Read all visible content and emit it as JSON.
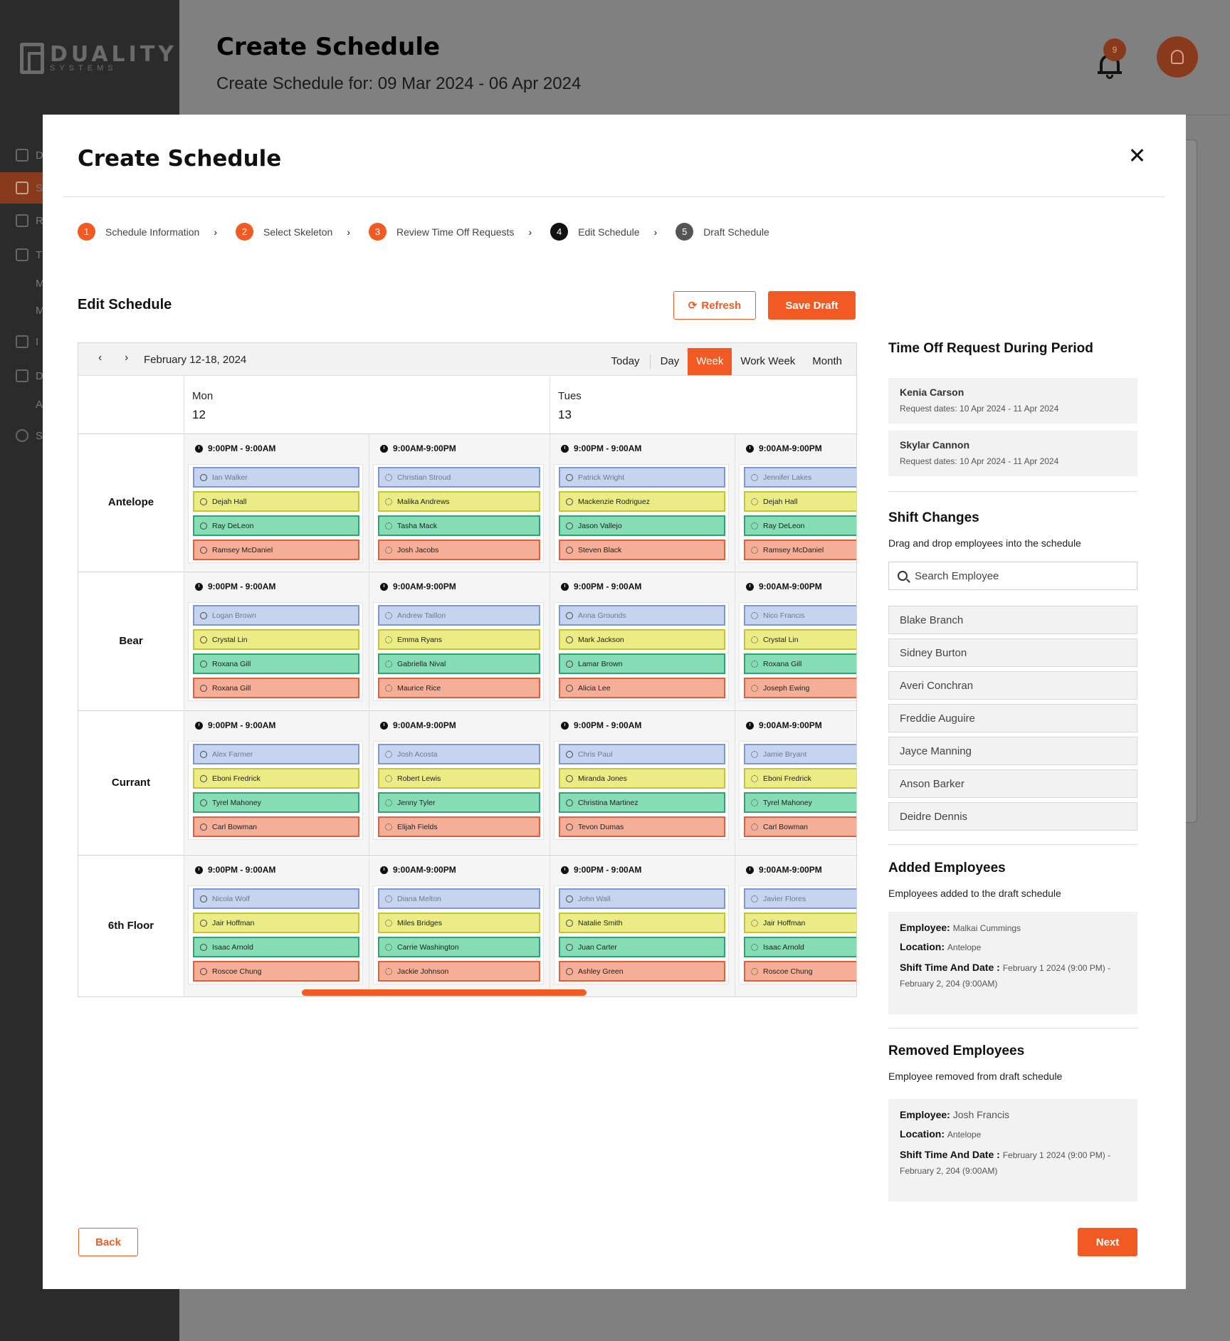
{
  "app": {
    "logo_text": "DUALITY",
    "logo_sub": "SYSTEMS",
    "page_title": "Create Schedule",
    "page_subtitle": "Create Schedule for: 09 Mar 2024 - 06 Apr 2024",
    "notification_count": "9",
    "sidebar": [
      "D",
      "S",
      "R",
      "T",
      "M",
      "M",
      "I",
      "D",
      "A",
      "Se"
    ]
  },
  "modal": {
    "title": "Create Schedule",
    "steps": [
      {
        "num": "1",
        "label": "Schedule Information"
      },
      {
        "num": "2",
        "label": "Select Skeleton"
      },
      {
        "num": "3",
        "label": "Review Time Off Requests"
      },
      {
        "num": "4",
        "label": "Edit Schedule"
      },
      {
        "num": "5",
        "label": "Draft Schedule"
      }
    ],
    "section_title": "Edit Schedule",
    "refresh_label": "Refresh",
    "save_draft_label": "Save Draft",
    "back_label": "Back",
    "next_label": "Next"
  },
  "calendar": {
    "prev": "‹",
    "next": "›",
    "range": "February 12-18, 2024",
    "views": [
      "Today",
      "Day",
      "Week",
      "Work Week",
      "Month"
    ],
    "active_view": "Week",
    "days": [
      {
        "name": "Mon",
        "date": "12"
      },
      {
        "name": "Tues",
        "date": "13"
      }
    ],
    "shift_colors": {
      "blue": "#c6d4ef",
      "yellow": "#ecec86",
      "green": "#86dcb4",
      "red": "#f5ae98",
      "accent": "#f15a22"
    },
    "locations": [
      {
        "name": "Antelope",
        "shifts": [
          {
            "time": "9:00PM - 9:00AM",
            "icon": "moon",
            "employees": [
              "Ian Walker",
              "Dejah Hall",
              "Ray DeLeon",
              "Ramsey McDaniel"
            ]
          },
          {
            "time": "9:00AM-9:00PM",
            "icon": "sun",
            "employees": [
              "Christian Stroud",
              "Malika Andrews",
              "Tasha Mack",
              "Josh Jacobs"
            ]
          },
          {
            "time": "9:00PM - 9:00AM",
            "icon": "moon",
            "employees": [
              "Patrick Wright",
              "Mackenzie Rodriguez",
              "Jason Vallejo",
              "Steven Black"
            ]
          },
          {
            "time": "9:00AM-9:00PM",
            "icon": "sun",
            "employees": [
              "Jennifer Lakes",
              "Dejah Hall",
              "Ray DeLeon",
              "Ramsey McDaniel"
            ]
          }
        ]
      },
      {
        "name": "Bear",
        "shifts": [
          {
            "time": "9:00PM - 9:00AM",
            "icon": "moon",
            "employees": [
              "Logan Brown",
              "Crystal Lin",
              "Roxana Gill",
              "Roxana Gill"
            ]
          },
          {
            "time": "9:00AM-9:00PM",
            "icon": "sun",
            "employees": [
              "Andrew Taillon",
              "Emma Ryans",
              "Gabriella Nival",
              "Maurice Rice"
            ]
          },
          {
            "time": "9:00PM - 9:00AM",
            "icon": "moon",
            "employees": [
              "Anna Grounds",
              "Mark Jackson",
              "Lamar Brown",
              "Alicia Lee"
            ]
          },
          {
            "time": "9:00AM-9:00PM",
            "icon": "sun",
            "employees": [
              "Nico Francis",
              "Crystal Lin",
              "Roxana Gill",
              "Joseph Ewing"
            ]
          }
        ]
      },
      {
        "name": "Currant",
        "shifts": [
          {
            "time": "9:00PM - 9:00AM",
            "icon": "moon",
            "employees": [
              "Alex Farmer",
              "Eboni Fredrick",
              "Tyrel Mahoney",
              "Carl Bowman"
            ]
          },
          {
            "time": "9:00AM-9:00PM",
            "icon": "sun",
            "employees": [
              "Josh Acosta",
              "Robert Lewis",
              "Jenny Tyler",
              "Elijah Fields"
            ]
          },
          {
            "time": "9:00PM - 9:00AM",
            "icon": "moon",
            "employees": [
              "Chris Paul",
              "Miranda Jones",
              "Christina Martinez",
              "Tevon Dumas"
            ]
          },
          {
            "time": "9:00AM-9:00PM",
            "icon": "sun",
            "employees": [
              "Jamie Bryant",
              "Eboni Fredrick",
              "Tyrel Mahoney",
              "Carl Bowman"
            ]
          }
        ]
      },
      {
        "name": "6th Floor",
        "shifts": [
          {
            "time": "9:00PM - 9:00AM",
            "icon": "moon",
            "employees": [
              "Nicola Wolf",
              "Jair Hoffman",
              "Isaac Arnold",
              "Roscoe Chung"
            ]
          },
          {
            "time": "9:00AM-9:00PM",
            "icon": "sun",
            "employees": [
              "Diana Melton",
              "Miles Bridges",
              "Carrie Washington",
              "Jackie Johnson"
            ]
          },
          {
            "time": "9:00PM - 9:00AM",
            "icon": "moon",
            "employees": [
              "John Wall",
              "Natalie Smith",
              "Juan Carter",
              "Ashley Green"
            ]
          },
          {
            "time": "9:00AM-9:00PM",
            "icon": "sun",
            "employees": [
              "Javier Flores",
              "Jair Hoffman",
              "Isaac Arnold",
              "Roscoe Chung"
            ]
          }
        ]
      }
    ]
  },
  "time_off": {
    "title": "Time Off Request During Period",
    "requests": [
      {
        "name": "Kenia Carson",
        "dates": "Request dates: 10 Apr 2024 - 11 Apr 2024"
      },
      {
        "name": "Skylar Cannon",
        "dates": "Request dates: 10 Apr 2024 - 11 Apr 2024"
      }
    ]
  },
  "shift_changes": {
    "title": "Shift Changes",
    "desc": "Drag and drop employees into the schedule",
    "search_placeholder": "Search Employee",
    "employees": [
      "Blake Branch",
      "Sidney Burton",
      "Averi Conchran",
      "Freddie Auguire",
      "Jayce Manning",
      "Anson Barker",
      "Deidre Dennis"
    ]
  },
  "added": {
    "title": "Added Employees",
    "desc": "Employees added to the draft schedule",
    "employee_label": "Employee:",
    "employee": "Malkai Cummings",
    "location_label": "Location:",
    "location": "Antelope",
    "shift_label": "Shift Time And Date :",
    "shift": "February 1 2024 (9:00 PM) - February 2, 204 (9:00AM)"
  },
  "removed": {
    "title": "Removed Employees",
    "desc": "Employee removed from draft schedule",
    "employee_label": "Employee:",
    "employee": "Josh Francis",
    "location_label": "Location:",
    "location": "Antelope",
    "shift_label": "Shift Time And Date :",
    "shift": "February 1 2024 (9:00 PM) - February 2, 204 (9:00AM)"
  }
}
